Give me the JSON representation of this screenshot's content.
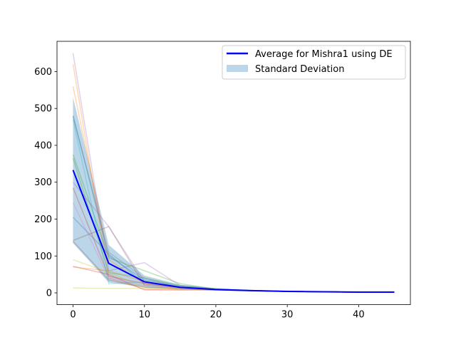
{
  "chart_data": {
    "type": "line",
    "title": "",
    "xlabel": "",
    "ylabel": "",
    "xlim": [
      -2.25,
      47.25
    ],
    "ylim": [
      -32,
      682
    ],
    "x_ticks": [
      0,
      10,
      20,
      30,
      40
    ],
    "y_ticks": [
      0,
      100,
      200,
      300,
      400,
      500,
      600
    ],
    "grid": false,
    "legend_position": "top-right",
    "x": [
      0,
      5,
      10,
      15,
      20,
      25,
      30,
      35,
      40,
      45
    ],
    "series": [
      {
        "name": "Average for Mishra1 using DE",
        "color": "#0000ff",
        "values": [
          333,
          80,
          30,
          15,
          9,
          6,
          4,
          3,
          2,
          2
        ]
      }
    ],
    "band": {
      "name": "Standard Deviation",
      "color": "#1f77b4",
      "lower": [
        135,
        28,
        15,
        9,
        6,
        4,
        3,
        2,
        1,
        1
      ],
      "upper": [
        530,
        130,
        47,
        22,
        13,
        8,
        6,
        4,
        3,
        3
      ]
    },
    "runs": [
      {
        "color": "#1f77b4",
        "values": [
          205,
          105,
          25,
          15,
          9,
          6,
          4,
          3,
          2,
          2
        ]
      },
      {
        "color": "#ff7f0e",
        "values": [
          620,
          40,
          10,
          8,
          8,
          6,
          4,
          3,
          2,
          2
        ]
      },
      {
        "color": "#2ca02c",
        "values": [
          375,
          95,
          60,
          25,
          10,
          6,
          4,
          3,
          2,
          2
        ]
      },
      {
        "color": "#d62728",
        "values": [
          285,
          45,
          25,
          15,
          10,
          6,
          4,
          3,
          2,
          2
        ]
      },
      {
        "color": "#9467bd",
        "values": [
          650,
          60,
          82,
          20,
          10,
          6,
          4,
          3,
          2,
          2
        ]
      },
      {
        "color": "#8c564b",
        "values": [
          142,
          180,
          20,
          15,
          10,
          6,
          4,
          3,
          2,
          2
        ]
      },
      {
        "color": "#e377c2",
        "values": [
          245,
          40,
          20,
          15,
          9,
          6,
          4,
          3,
          2,
          2
        ]
      },
      {
        "color": "#7f7f7f",
        "values": [
          480,
          110,
          40,
          15,
          9,
          6,
          4,
          3,
          2,
          2
        ]
      },
      {
        "color": "#bcbd22",
        "values": [
          13,
          12,
          12,
          12,
          10,
          6,
          4,
          3,
          2,
          2
        ]
      },
      {
        "color": "#17becf",
        "values": [
          470,
          25,
          30,
          15,
          9,
          6,
          4,
          3,
          2,
          2
        ]
      },
      {
        "color": "#ff7f0e",
        "values": [
          560,
          90,
          25,
          15,
          9,
          6,
          4,
          3,
          2,
          2
        ]
      },
      {
        "color": "#2ca02c",
        "values": [
          365,
          55,
          40,
          20,
          10,
          6,
          4,
          3,
          2,
          2
        ]
      },
      {
        "color": "#d62728",
        "values": [
          72,
          50,
          8,
          8,
          8,
          6,
          4,
          3,
          2,
          2
        ]
      },
      {
        "color": "#bcbd22",
        "values": [
          90,
          55,
          15,
          12,
          9,
          6,
          4,
          3,
          2,
          2
        ]
      },
      {
        "color": "#8c564b",
        "values": [
          140,
          35,
          15,
          12,
          9,
          6,
          4,
          3,
          2,
          2
        ]
      },
      {
        "color": "#9467bd",
        "values": [
          300,
          180,
          30,
          15,
          9,
          6,
          4,
          3,
          2,
          2
        ]
      },
      {
        "color": "#1f77b4",
        "values": [
          480,
          100,
          35,
          18,
          10,
          6,
          4,
          3,
          2,
          2
        ]
      },
      {
        "color": "#ff7f0e",
        "values": [
          70,
          60,
          30,
          15,
          9,
          6,
          4,
          3,
          2,
          2
        ]
      }
    ]
  }
}
